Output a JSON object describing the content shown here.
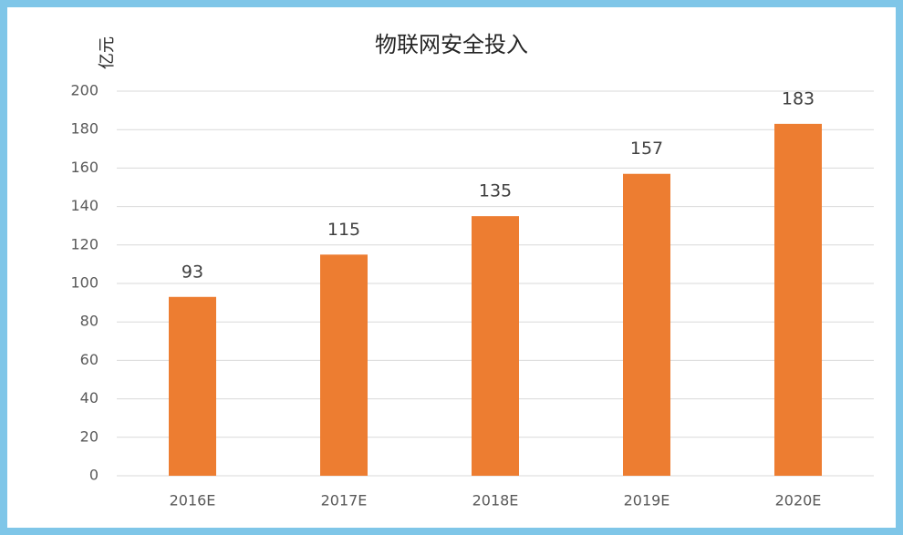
{
  "chart_data": {
    "type": "bar",
    "title": "物联网安全投入",
    "y_label": "亿元",
    "categories": [
      "2016E",
      "2017E",
      "2018E",
      "2019E",
      "2020E"
    ],
    "values": [
      93,
      115,
      135,
      157,
      183
    ],
    "color": "#ed7d31",
    "ylim": [
      0,
      200
    ],
    "yticks": [
      0,
      20,
      40,
      60,
      80,
      100,
      120,
      140,
      160,
      180,
      200
    ],
    "grid": true
  }
}
